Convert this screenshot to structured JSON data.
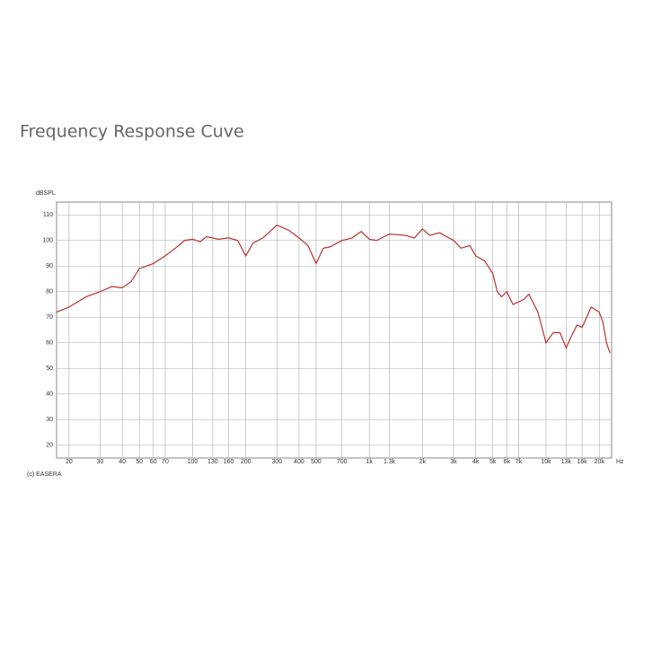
{
  "chart_data": {
    "type": "line",
    "title": "Frequency Response Cuve",
    "y_label": "dBSPL",
    "x_unit": "Hz",
    "footnote": "(c) EASERA",
    "log_x": true,
    "grid": true,
    "xlim": [
      17,
      23500
    ],
    "ylim": [
      15,
      115
    ],
    "xticks": [
      20,
      30,
      40,
      50,
      60,
      70,
      100,
      130,
      160,
      200,
      300,
      400,
      500,
      700,
      {
        "value": 1000,
        "label": "1k"
      },
      {
        "value": 1300,
        "label": "1.3k"
      },
      {
        "value": 2000,
        "label": "2k"
      },
      {
        "value": 3000,
        "label": "3k"
      },
      {
        "value": 4000,
        "label": "4k"
      },
      {
        "value": 5000,
        "label": "5k"
      },
      {
        "value": 6000,
        "label": "6k"
      },
      {
        "value": 7000,
        "label": "7k"
      },
      {
        "value": 10000,
        "label": "10k"
      },
      {
        "value": 13000,
        "label": "13k"
      },
      {
        "value": 16000,
        "label": "16k"
      },
      {
        "value": 20000,
        "label": "20k"
      }
    ],
    "yticks": [
      20,
      30,
      40,
      50,
      60,
      70,
      80,
      90,
      100,
      110
    ],
    "x": [
      17,
      20,
      25,
      30,
      35,
      40,
      45,
      50,
      60,
      70,
      80,
      90,
      100,
      110,
      120,
      140,
      160,
      180,
      200,
      220,
      250,
      300,
      350,
      400,
      450,
      500,
      550,
      600,
      700,
      800,
      900,
      1000,
      1100,
      1300,
      1600,
      1800,
      2000,
      2200,
      2500,
      3000,
      3300,
      3700,
      4000,
      4500,
      5000,
      5300,
      5600,
      6000,
      6500,
      7000,
      7500,
      8000,
      9000,
      10000,
      11000,
      12000,
      13000,
      14000,
      15000,
      16000,
      17000,
      18000,
      20000,
      21000,
      22000,
      23000
    ],
    "series": [
      {
        "color": "#b83232",
        "values": [
          72,
          74,
          78,
          80,
          82,
          81.5,
          84,
          89,
          91,
          94,
          97,
          100,
          100.5,
          99.5,
          101.5,
          100.5,
          101,
          100,
          94,
          99,
          101,
          106,
          104,
          101,
          98,
          91,
          97,
          97.5,
          100,
          101,
          103.5,
          100.5,
          100,
          102.5,
          102,
          101,
          104.5,
          102,
          103,
          100,
          97,
          98,
          94,
          92,
          87,
          80,
          78,
          80,
          75,
          76,
          77,
          79,
          72,
          60,
          64,
          64,
          58,
          63,
          67,
          66,
          70,
          74,
          72,
          68,
          60,
          56
        ]
      }
    ]
  }
}
